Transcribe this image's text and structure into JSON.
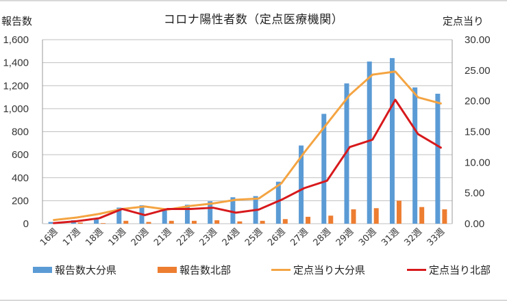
{
  "chart_data": {
    "type": "bar",
    "title": "コロナ陽性者数（定点医療機関）",
    "ylabel": "報告数",
    "y2label": "定点当り",
    "ylim": [
      0,
      1600
    ],
    "y2lim": [
      0,
      30
    ],
    "yticks": [
      "0",
      "200",
      "400",
      "600",
      "800",
      "1,000",
      "1,200",
      "1,400",
      "1,600"
    ],
    "y2ticks": [
      "0.00",
      "5.00",
      "10.00",
      "15.00",
      "20.00",
      "25.00",
      "30.00"
    ],
    "grid": true,
    "legend_position": "bottom",
    "categories": [
      "16週",
      "17週",
      "18週",
      "19週",
      "20週",
      "21週",
      "22週",
      "23週",
      "24週",
      "25週",
      "26週",
      "27週",
      "28週",
      "29週",
      "30週",
      "31週",
      "32週",
      "33週"
    ],
    "series": [
      {
        "name": "報告数大分県",
        "type": "bar",
        "axis": "left",
        "color": "#5b9bd5",
        "values": [
          15,
          30,
          50,
          140,
          160,
          125,
          165,
          195,
          230,
          240,
          365,
          680,
          955,
          1220,
          1410,
          1440,
          1185,
          1130
        ]
      },
      {
        "name": "報告数北部",
        "type": "bar",
        "axis": "left",
        "color": "#ed7d31",
        "values": [
          3,
          10,
          5,
          25,
          15,
          25,
          25,
          30,
          20,
          25,
          40,
          60,
          70,
          125,
          135,
          200,
          145,
          125
        ]
      },
      {
        "name": "定点当り大分県",
        "type": "line",
        "axis": "right",
        "color": "#f4a442",
        "values": [
          0.6,
          1.0,
          1.6,
          2.4,
          2.8,
          2.3,
          2.9,
          3.3,
          3.9,
          4.1,
          6.6,
          11.6,
          16.3,
          21.0,
          24.3,
          24.8,
          20.6,
          19.6
        ]
      },
      {
        "name": "定点当り北部",
        "type": "line",
        "axis": "right",
        "color": "#d7191c",
        "values": [
          0.1,
          0.4,
          0.9,
          2.4,
          1.4,
          2.4,
          2.4,
          2.6,
          1.8,
          2.3,
          3.9,
          5.8,
          7.0,
          12.5,
          13.7,
          20.2,
          14.6,
          12.4
        ]
      }
    ]
  }
}
